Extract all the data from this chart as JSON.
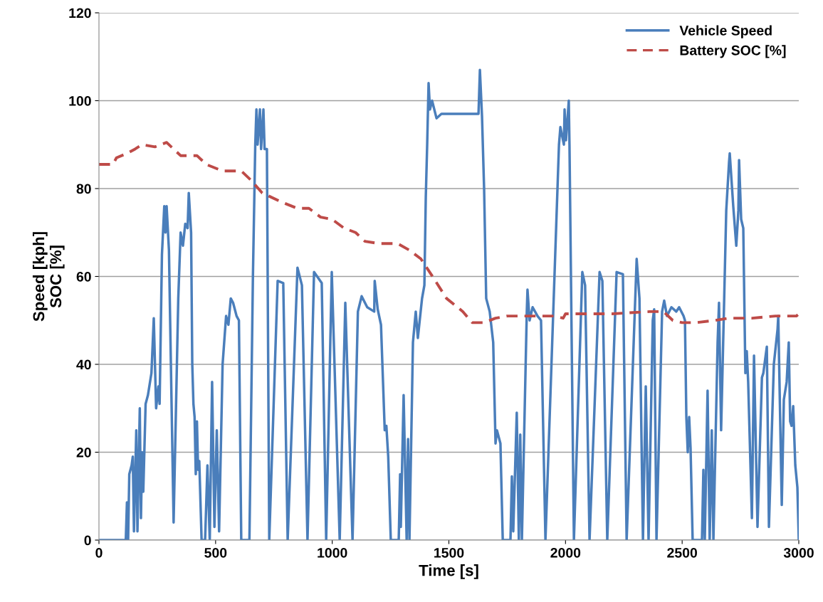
{
  "chart_data": {
    "type": "line",
    "xlabel": "Time [s]",
    "ylabel": "Speed [kph]\nSOC [%]",
    "xlim": [
      0,
      3000
    ],
    "xticks": [
      0,
      500,
      1000,
      1500,
      2000,
      2500,
      3000
    ],
    "ylim": [
      0,
      120
    ],
    "yticks": [
      0,
      20,
      40,
      60,
      80,
      100,
      120
    ],
    "grid": "y",
    "legend": "top right",
    "series": [
      {
        "name": "Vehicle Speed",
        "color": "#4a7ebb",
        "line_style": "solid",
        "x": [
          0,
          115,
          120,
          125,
          130,
          140,
          145,
          150,
          160,
          165,
          175,
          180,
          185,
          190,
          195,
          200,
          210,
          225,
          235,
          245,
          255,
          260,
          270,
          280,
          285,
          290,
          300,
          320,
          340,
          350,
          360,
          370,
          380,
          385,
          395,
          400,
          405,
          410,
          415,
          420,
          425,
          430,
          440,
          455,
          465,
          475,
          485,
          495,
          505,
          515,
          530,
          545,
          555,
          565,
          575,
          590,
          600,
          610,
          645,
          660,
          670,
          675,
          680,
          690,
          695,
          705,
          710,
          720,
          730,
          766,
          790,
          809,
          851,
          870,
          894,
          922,
          955,
          974,
          998,
          1032,
          1056,
          1087,
          1110,
          1126,
          1150,
          1180,
          1182,
          1195,
          1209,
          1225,
          1232,
          1240,
          1251,
          1285,
          1291,
          1294,
          1306,
          1319,
          1325,
          1331,
          1346,
          1358,
          1367,
          1385,
          1395,
          1401,
          1407,
          1413,
          1419,
          1428,
          1447,
          1468,
          1627,
          1633,
          1642,
          1651,
          1660,
          1675,
          1690,
          1700,
          1706,
          1721,
          1731,
          1764,
          1770,
          1776,
          1791,
          1800,
          1806,
          1813,
          1834,
          1837,
          1846,
          1859,
          1880,
          1895,
          1914,
          1972,
          1978,
          1993,
          1996,
          2002,
          2014,
          2017,
          2036,
          2072,
          2084,
          2103,
          2146,
          2158,
          2179,
          2219,
          2246,
          2262,
          2305,
          2317,
          2332,
          2344,
          2356,
          2374,
          2380,
          2390,
          2414,
          2423,
          2435,
          2454,
          2475,
          2487,
          2506,
          2512,
          2518,
          2524,
          2530,
          2536,
          2545,
          2585,
          2591,
          2597,
          2609,
          2618,
          2627,
          2634,
          2652,
          2658,
          2667,
          2689,
          2701,
          2704,
          2719,
          2732,
          2741,
          2744,
          2753,
          2762,
          2771,
          2777,
          2783,
          2799,
          2808,
          2823,
          2842,
          2848,
          2863,
          2872,
          2893,
          2909,
          2912,
          2927,
          2936,
          2948,
          2957,
          2963,
          2969,
          2976,
          2985,
          2994,
          3000
        ],
        "values": [
          0,
          0,
          8.6,
          0,
          15,
          17,
          19,
          2,
          25,
          2,
          30,
          5,
          20,
          11,
          21,
          31,
          33,
          38,
          50.5,
          30,
          35,
          31,
          65,
          76,
          70,
          76,
          66,
          4,
          55,
          70,
          67,
          72,
          71,
          79,
          70,
          40,
          31,
          28,
          15,
          27,
          16,
          18,
          0,
          0,
          17,
          0,
          36,
          3,
          25,
          2,
          40,
          51,
          49,
          55,
          54,
          51,
          50,
          0,
          0,
          60,
          90,
          98,
          90,
          98,
          89,
          98,
          89,
          89,
          0,
          59,
          58.5,
          0,
          62,
          58,
          0,
          61,
          58.5,
          0,
          61,
          0,
          54,
          0,
          52,
          55.5,
          53,
          52,
          59,
          52.5,
          49,
          25,
          26,
          19,
          0,
          0,
          15,
          3,
          33,
          0,
          23,
          0,
          45,
          52,
          46,
          55,
          58,
          78,
          90,
          104,
          98,
          100,
          96,
          97,
          97,
          107,
          96.5,
          80,
          55,
          52,
          45,
          22,
          25,
          22,
          0,
          0,
          14.5,
          2,
          29,
          0,
          24,
          0,
          52,
          57,
          50,
          53,
          51,
          50,
          0,
          90,
          94,
          90,
          98,
          91,
          100,
          90,
          0,
          61,
          58,
          0,
          61,
          59,
          0,
          61,
          60.5,
          0,
          64,
          55,
          0,
          35,
          0,
          50,
          52.5,
          0,
          52,
          54.5,
          51,
          53,
          52,
          53,
          51,
          50,
          28,
          20,
          28,
          21,
          0,
          0,
          16,
          0,
          34,
          0,
          25,
          0,
          45,
          54,
          25,
          75,
          86,
          88,
          76,
          67,
          75,
          86.5,
          73,
          71,
          38,
          43,
          36,
          5,
          42,
          3,
          37,
          38,
          44,
          3,
          40,
          48,
          51,
          8,
          32,
          36,
          45,
          27,
          26,
          30.5,
          17,
          12,
          0
        ]
      },
      {
        "name": "Battery SOC [%]",
        "color": "#be4b48",
        "line_style": "dashed",
        "x": [
          0,
          60,
          75,
          120,
          155,
          185,
          240,
          290,
          320,
          350,
          420,
          460,
          530,
          610,
          650,
          700,
          780,
          850,
          900,
          950,
          1000,
          1050,
          1100,
          1140,
          1200,
          1280,
          1330,
          1380,
          1430,
          1490,
          1560,
          1600,
          1650,
          1700,
          1750,
          1900,
          1950,
          1990,
          2000,
          2200,
          2360,
          2420,
          2460,
          2500,
          2560,
          2640,
          2700,
          2800,
          2900,
          2990,
          3000
        ],
        "values": [
          85.5,
          85.5,
          87,
          88,
          89,
          90,
          89.5,
          90.5,
          89,
          87.5,
          87.5,
          85.5,
          84,
          84,
          82,
          79,
          77,
          75.5,
          75.5,
          73.5,
          73,
          71,
          70,
          68,
          67.5,
          67.5,
          66,
          64,
          60,
          55,
          52,
          49.5,
          49.5,
          50.5,
          51,
          51,
          51,
          50.5,
          51.5,
          51.5,
          52,
          52,
          50,
          49.5,
          49.5,
          50,
          50.5,
          50.5,
          51,
          51,
          51.5
        ]
      }
    ]
  }
}
